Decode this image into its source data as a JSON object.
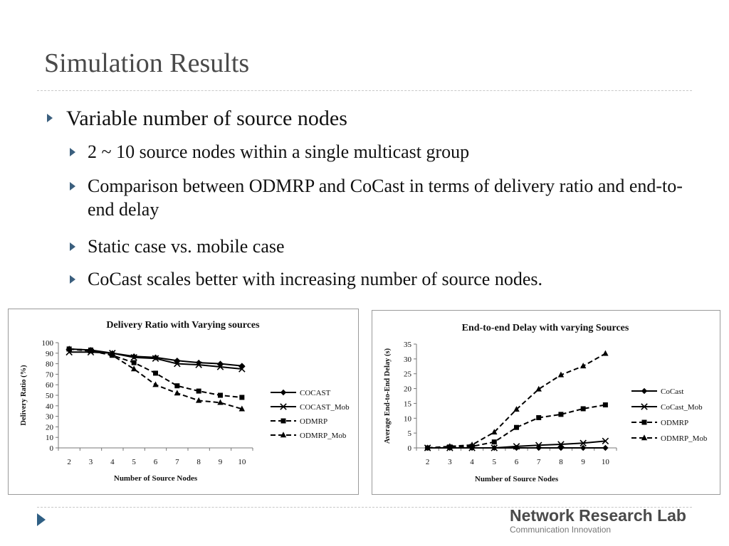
{
  "slide": {
    "title": "Simulation Results",
    "bullets": [
      {
        "text": "Variable number of source nodes"
      },
      {
        "text": "2 ~ 10 source nodes within a single multicast group"
      },
      {
        "text": "Comparison between ODMRP and CoCast in terms of delivery ratio and end-to-end delay"
      },
      {
        "text": "Static case vs. mobile case"
      },
      {
        "text": "CoCast scales better with increasing number of source nodes."
      }
    ]
  },
  "footer": {
    "brand": "Network Research Lab",
    "tagline": "Communication Innovation"
  },
  "colors": {
    "arrow": "#3b5f7e",
    "title": "#4a4a4a"
  },
  "chart_data": [
    {
      "type": "line",
      "title": "Delivery Ratio with Varying sources",
      "xlabel": "Number of Source Nodes",
      "ylabel": "Delivery Ratio (%)",
      "x": [
        2,
        3,
        4,
        5,
        6,
        7,
        8,
        9,
        10
      ],
      "ylim": [
        0,
        100
      ],
      "yticks": [
        0,
        10,
        20,
        30,
        40,
        50,
        60,
        70,
        80,
        90,
        100
      ],
      "grid": false,
      "legend": "right",
      "series": [
        {
          "name": "COCAST",
          "marker": "diamond",
          "dash": "solid",
          "values": [
            94,
            93,
            90,
            87,
            86,
            83,
            81,
            80,
            78
          ]
        },
        {
          "name": "COCAST_Mob",
          "marker": "x",
          "dash": "solid",
          "values": [
            91,
            91,
            90,
            86,
            85,
            80,
            79,
            77,
            75
          ]
        },
        {
          "name": "ODMRP",
          "marker": "square",
          "dash": "dashed",
          "values": [
            94,
            93,
            88,
            81,
            71,
            59,
            54,
            50,
            48
          ]
        },
        {
          "name": "ODMRP_Mob",
          "marker": "triangle",
          "dash": "dashed",
          "values": [
            94,
            92,
            88,
            75,
            60,
            52,
            45,
            43,
            37
          ]
        }
      ]
    },
    {
      "type": "line",
      "title": "End-to-end Delay with varying Sources",
      "xlabel": "Number of Source Nodes",
      "ylabel": "Average End-to-End Delay (s)",
      "x": [
        2,
        3,
        4,
        5,
        6,
        7,
        8,
        9,
        10
      ],
      "ylim": [
        0,
        35
      ],
      "yticks": [
        0,
        5,
        10,
        15,
        20,
        25,
        30,
        35
      ],
      "grid": false,
      "legend": "right",
      "series": [
        {
          "name": "CoCast",
          "marker": "diamond",
          "dash": "solid",
          "values": [
            0,
            0,
            0,
            0,
            0,
            0,
            0,
            0,
            0
          ]
        },
        {
          "name": "CoCast_Mob",
          "marker": "x",
          "dash": "solid",
          "values": [
            0,
            0,
            0,
            0,
            0.5,
            0.9,
            1.2,
            1.6,
            2.3
          ]
        },
        {
          "name": "ODMRP",
          "marker": "square",
          "dash": "dashed",
          "values": [
            0,
            0.3,
            0.5,
            2.0,
            6.9,
            10.2,
            11.3,
            13.2,
            14.5
          ]
        },
        {
          "name": "ODMRP_Mob",
          "marker": "triangle",
          "dash": "dashed",
          "values": [
            0,
            0.5,
            1.0,
            5.3,
            13.0,
            19.8,
            24.6,
            27.6,
            31.8
          ]
        }
      ]
    }
  ]
}
